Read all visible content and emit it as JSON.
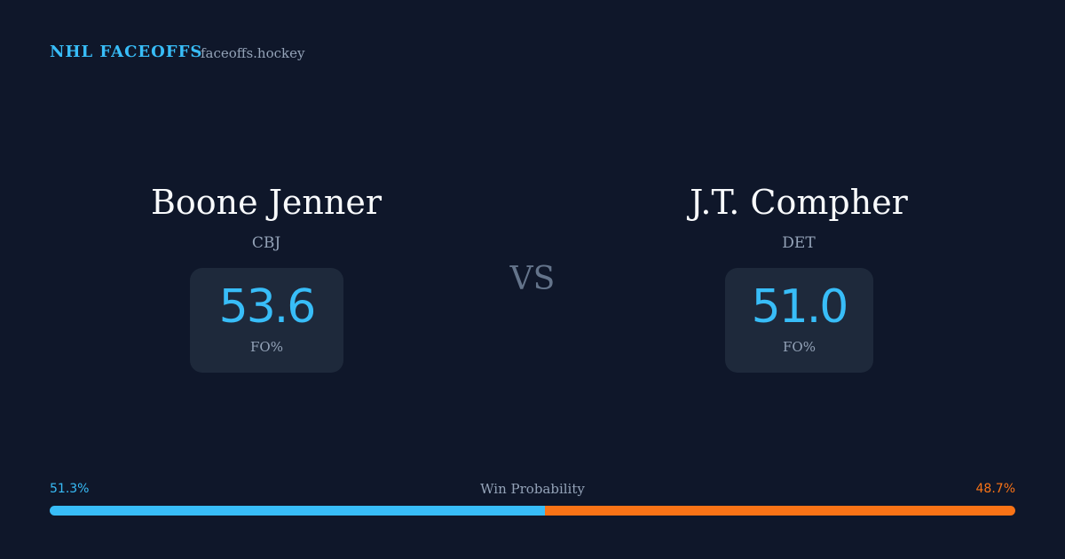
{
  "header": {
    "brand": "NHL FACEOFFS",
    "site": "faceoffs.hockey"
  },
  "players": [
    {
      "name": "Boone Jenner",
      "team": "CBJ",
      "fo_value": "53.6",
      "fo_label": "FO%"
    },
    {
      "name": "J.T. Compher",
      "team": "DET",
      "fo_value": "51.0",
      "fo_label": "FO%"
    }
  ],
  "vs": "VS",
  "win_probability": {
    "label": "Win Probability",
    "left": {
      "value": 51.3,
      "label": "51.3%",
      "color": "#38bdf8"
    },
    "right": {
      "value": 48.7,
      "label": "48.7%",
      "color": "#f97316"
    }
  }
}
